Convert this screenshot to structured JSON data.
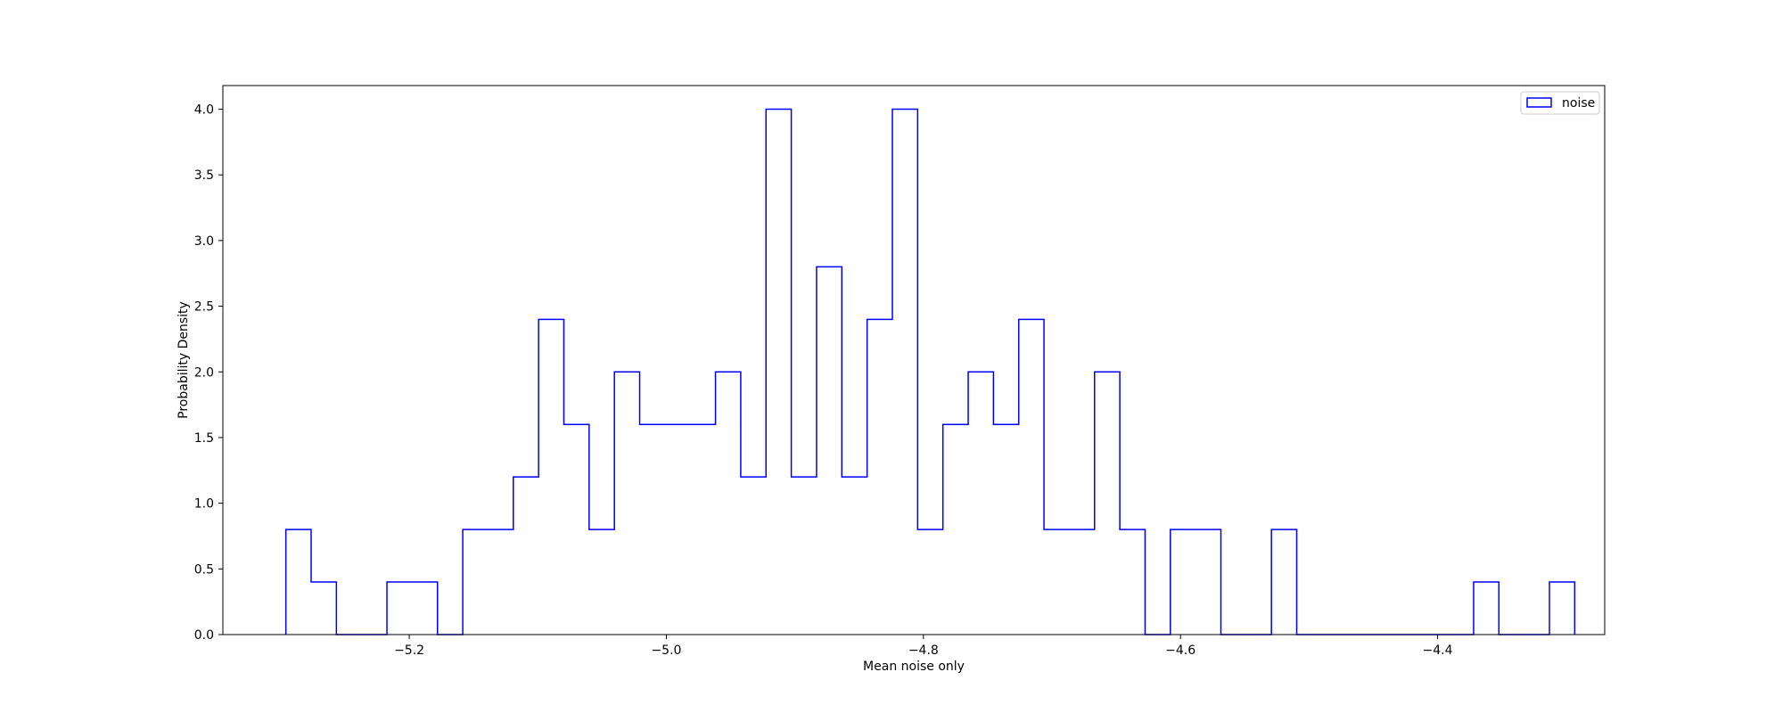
{
  "chart_data": {
    "type": "histogram",
    "title": "",
    "xlabel": "Mean noise only",
    "ylabel": "Probability Density",
    "xlim": [
      -5.345,
      -4.27
    ],
    "ylim": [
      0.0,
      4.18
    ],
    "grid": false,
    "legend_position": "top-right",
    "x_ticks": [
      -5.2,
      -5.0,
      -4.8,
      -4.6,
      -4.4
    ],
    "x_tick_labels": [
      "−5.2",
      "−5.0",
      "−4.8",
      "−4.6",
      "−4.4"
    ],
    "y_ticks": [
      0.0,
      0.5,
      1.0,
      1.5,
      2.0,
      2.5,
      3.0,
      3.5,
      4.0
    ],
    "y_tick_labels": [
      "0.0",
      "0.5",
      "1.0",
      "1.5",
      "2.0",
      "2.5",
      "3.0",
      "3.5",
      "4.0"
    ],
    "series": [
      {
        "name": "noise",
        "color": "#0000ff",
        "histtype": "step",
        "bin_start": -5.296,
        "bin_width": 0.01966,
        "values": [
          0.8,
          0.4,
          0.0,
          0.0,
          0.4,
          0.4,
          0.0,
          0.8,
          0.8,
          1.2,
          2.4,
          1.6,
          0.8,
          2.0,
          1.6,
          1.6,
          1.6,
          2.0,
          1.2,
          4.0,
          1.2,
          2.8,
          1.2,
          2.4,
          4.0,
          0.8,
          1.6,
          2.0,
          1.6,
          2.4,
          0.8,
          0.8,
          2.0,
          0.8,
          0.0,
          0.8,
          0.8,
          0.0,
          0.0,
          0.8,
          0.0,
          0.0,
          0.0,
          0.0,
          0.0,
          0.0,
          0.0,
          0.4,
          0.0,
          0.0,
          0.4
        ]
      }
    ]
  }
}
